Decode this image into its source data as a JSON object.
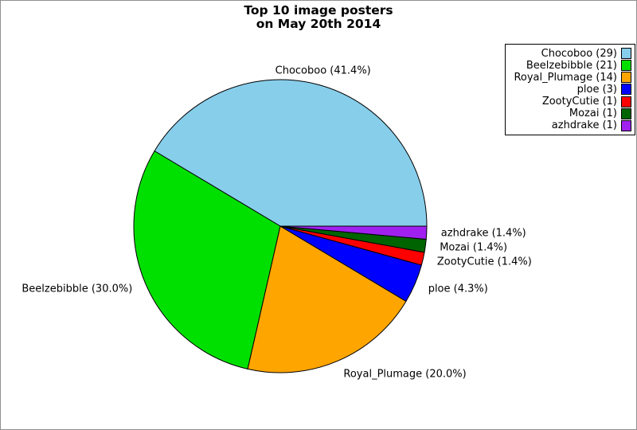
{
  "figure": {
    "title_line1": "Top 10 image posters",
    "title_line2": "on May 20th 2014",
    "background": "#FFFFFF",
    "border_color": "#909090"
  },
  "chart_data": {
    "type": "pie",
    "title": "Top 10 image posters on May 20th 2014",
    "start_angle_deg": 0,
    "direction": "counterclockwise",
    "legend_position": "top-right",
    "legend_marker_side": "right",
    "slice_edge_color": "#000000",
    "series": [
      {
        "label": "Chocoboo",
        "count": 29,
        "percent": 41.4,
        "color": "#87CEEB",
        "slice_label": "Chocoboo (41.4%)",
        "legend_label": "Chocoboo (29)"
      },
      {
        "label": "Beelzebibble",
        "count": 21,
        "percent": 30.0,
        "color": "#00E000",
        "slice_label": "Beelzebibble (30.0%)",
        "legend_label": "Beelzebibble (21)"
      },
      {
        "label": "Royal_Plumage",
        "count": 14,
        "percent": 20.0,
        "color": "#FFA500",
        "slice_label": "Royal_Plumage (20.0%)",
        "legend_label": "Royal_Plumage (14)"
      },
      {
        "label": "ploe",
        "count": 3,
        "percent": 4.3,
        "color": "#0000FF",
        "slice_label": "ploe (4.3%)",
        "legend_label": "ploe (3)"
      },
      {
        "label": "ZootyCutie",
        "count": 1,
        "percent": 1.4,
        "color": "#FF0000",
        "slice_label": "ZootyCutie (1.4%)",
        "legend_label": "ZootyCutie (1)"
      },
      {
        "label": "Mozai",
        "count": 1,
        "percent": 1.4,
        "color": "#006400",
        "slice_label": "Mozai (1.4%)",
        "legend_label": "Mozai (1)"
      },
      {
        "label": "azhdrake",
        "count": 1,
        "percent": 1.4,
        "color": "#A020F0",
        "slice_label": "azhdrake (1.4%)",
        "legend_label": "azhdrake (1)"
      }
    ]
  }
}
